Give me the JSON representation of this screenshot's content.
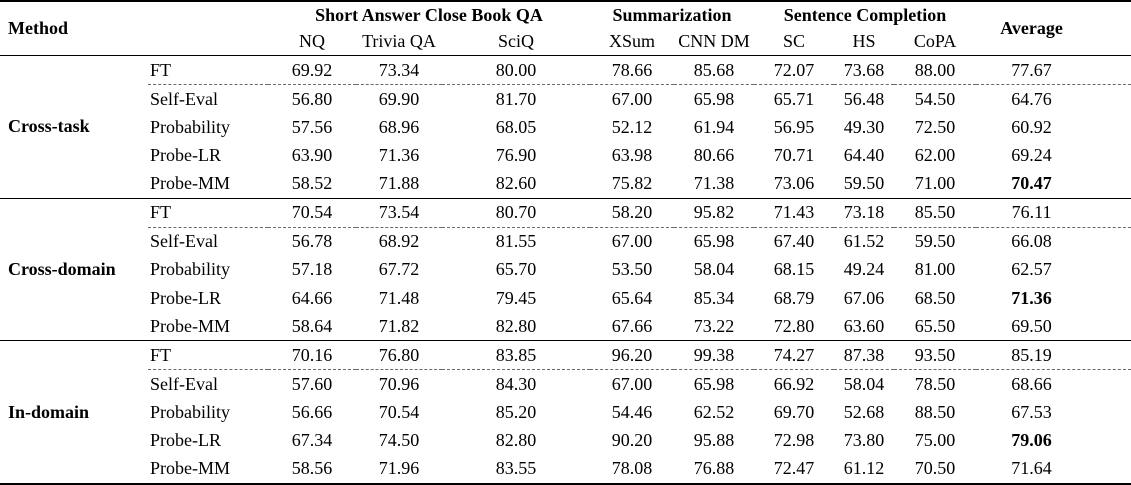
{
  "table": {
    "header": {
      "method_label": "Method",
      "average_label": "Average",
      "groups": [
        {
          "label": "Short Answer Close Book QA",
          "columns": [
            "NQ",
            "Trivia QA",
            "SciQ"
          ]
        },
        {
          "label": "Summarization",
          "columns": [
            "XSum",
            "CNN DM"
          ]
        },
        {
          "label": "Sentence Completion",
          "columns": [
            "SC",
            "HS",
            "CoPA"
          ]
        }
      ]
    },
    "row_groups": [
      {
        "label": "Cross-task",
        "rows": [
          {
            "method": "FT",
            "values": [
              "69.92",
              "73.34",
              "80.00",
              "78.66",
              "85.68",
              "72.07",
              "73.68",
              "88.00"
            ],
            "average": "77.67",
            "average_bold": false,
            "dashed_below": true
          },
          {
            "method": "Self-Eval",
            "values": [
              "56.80",
              "69.90",
              "81.70",
              "67.00",
              "65.98",
              "65.71",
              "56.48",
              "54.50"
            ],
            "average": "64.76",
            "average_bold": false,
            "dashed_below": false
          },
          {
            "method": "Probability",
            "values": [
              "57.56",
              "68.96",
              "68.05",
              "52.12",
              "61.94",
              "56.95",
              "49.30",
              "72.50"
            ],
            "average": "60.92",
            "average_bold": false,
            "dashed_below": false
          },
          {
            "method": "Probe-LR",
            "values": [
              "63.90",
              "71.36",
              "76.90",
              "63.98",
              "80.66",
              "70.71",
              "64.40",
              "62.00"
            ],
            "average": "69.24",
            "average_bold": false,
            "dashed_below": false
          },
          {
            "method": "Probe-MM",
            "values": [
              "58.52",
              "71.88",
              "82.60",
              "75.82",
              "71.38",
              "73.06",
              "59.50",
              "71.00"
            ],
            "average": "70.47",
            "average_bold": true,
            "dashed_below": false
          }
        ]
      },
      {
        "label": "Cross-domain",
        "rows": [
          {
            "method": "FT",
            "values": [
              "70.54",
              "73.54",
              "80.70",
              "58.20",
              "95.82",
              "71.43",
              "73.18",
              "85.50"
            ],
            "average": "76.11",
            "average_bold": false,
            "dashed_below": true
          },
          {
            "method": "Self-Eval",
            "values": [
              "56.78",
              "68.92",
              "81.55",
              "67.00",
              "65.98",
              "67.40",
              "61.52",
              "59.50"
            ],
            "average": "66.08",
            "average_bold": false,
            "dashed_below": false
          },
          {
            "method": "Probability",
            "values": [
              "57.18",
              "67.72",
              "65.70",
              "53.50",
              "58.04",
              "68.15",
              "49.24",
              "81.00"
            ],
            "average": "62.57",
            "average_bold": false,
            "dashed_below": false
          },
          {
            "method": "Probe-LR",
            "values": [
              "64.66",
              "71.48",
              "79.45",
              "65.64",
              "85.34",
              "68.79",
              "67.06",
              "68.50"
            ],
            "average": "71.36",
            "average_bold": true,
            "dashed_below": false
          },
          {
            "method": "Probe-MM",
            "values": [
              "58.64",
              "71.82",
              "82.80",
              "67.66",
              "73.22",
              "72.80",
              "63.60",
              "65.50"
            ],
            "average": "69.50",
            "average_bold": false,
            "dashed_below": false
          }
        ]
      },
      {
        "label": "In-domain",
        "rows": [
          {
            "method": "FT",
            "values": [
              "70.16",
              "76.80",
              "83.85",
              "96.20",
              "99.38",
              "74.27",
              "87.38",
              "93.50"
            ],
            "average": "85.19",
            "average_bold": false,
            "dashed_below": true
          },
          {
            "method": "Self-Eval",
            "values": [
              "57.60",
              "70.96",
              "84.30",
              "67.00",
              "65.98",
              "66.92",
              "58.04",
              "78.50"
            ],
            "average": "68.66",
            "average_bold": false,
            "dashed_below": false
          },
          {
            "method": "Probability",
            "values": [
              "56.66",
              "70.54",
              "85.20",
              "54.46",
              "62.52",
              "69.70",
              "52.68",
              "88.50"
            ],
            "average": "67.53",
            "average_bold": false,
            "dashed_below": false
          },
          {
            "method": "Probe-LR",
            "values": [
              "67.34",
              "74.50",
              "82.80",
              "90.20",
              "95.88",
              "72.98",
              "73.80",
              "75.00"
            ],
            "average": "79.06",
            "average_bold": true,
            "dashed_below": false
          },
          {
            "method": "Probe-MM",
            "values": [
              "58.56",
              "71.96",
              "83.55",
              "78.08",
              "76.88",
              "72.47",
              "61.12",
              "70.50"
            ],
            "average": "71.64",
            "average_bold": false,
            "dashed_below": false
          }
        ]
      }
    ]
  }
}
